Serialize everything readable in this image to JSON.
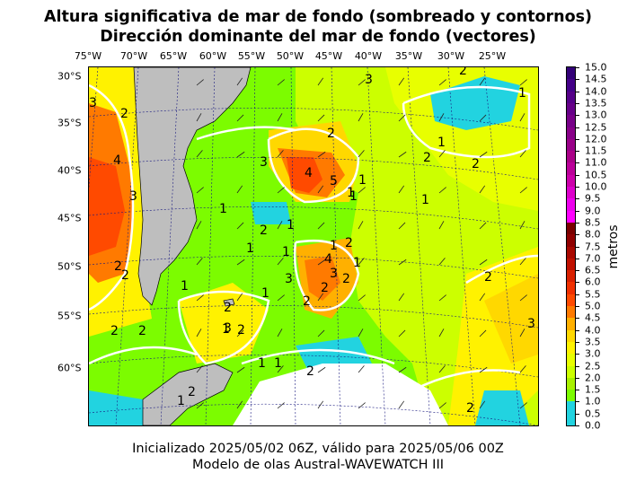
{
  "title_line1": "Altura significativa de mar de fondo (sombreado y contornos)",
  "title_line2": "Dirección dominante del mar de fondo (vectores)",
  "longitude_labels": [
    "75°W",
    "70°W",
    "65°W",
    "60°W",
    "55°W",
    "50°W",
    "45°W",
    "40°W",
    "35°W",
    "30°W",
    "25°W"
  ],
  "latitude_labels": [
    "30°S",
    "35°S",
    "40°S",
    "45°S",
    "50°S",
    "55°S",
    "60°S"
  ],
  "colorbar": {
    "label": "metros",
    "ticks": [
      "15.0",
      "14.5",
      "14.0",
      "13.5",
      "13.0",
      "12.5",
      "12.0",
      "11.5",
      "11.0",
      "10.5",
      "10.0",
      "9.5",
      "9.0",
      "8.5",
      "8.0",
      "7.5",
      "7.0",
      "6.5",
      "6.0",
      "5.5",
      "5.0",
      "4.5",
      "4.0",
      "3.5",
      "3.0",
      "2.5",
      "2.0",
      "1.5",
      "1.0",
      "0.5",
      "0.0"
    ],
    "colors": {
      "0.0": "#22d3e0",
      "0.5": "#22d3e0",
      "1.0": "#7cfc00",
      "1.5": "#a8f000",
      "2.0": "#ccff00",
      "2.5": "#e8ff00",
      "3.0": "#fff200",
      "3.5": "#ffd800",
      "4.0": "#ffb000",
      "4.5": "#ff7a00",
      "5.0": "#ff4a00",
      "5.5": "#f03000",
      "6.0": "#d82000",
      "6.5": "#c01000",
      "7.0": "#a80800",
      "7.5": "#900000",
      "8.0": "#7a0000",
      "8.5": "#ff00ff",
      "9.0": "#ee00ee",
      "9.5": "#dd00cc",
      "10.0": "#cc00aa",
      "10.5": "#bb0099",
      "11.0": "#aa0088",
      "11.5": "#990088",
      "12.0": "#880088",
      "12.5": "#770088",
      "13.0": "#660088",
      "13.5": "#550088",
      "14.0": "#440088",
      "14.5": "#330077"
    }
  },
  "contour_labels": [
    "3",
    "2",
    "4",
    "3",
    "1",
    "2",
    "2",
    "1",
    "2",
    "2",
    "3",
    "4",
    "1",
    "2",
    "5",
    "1",
    "1",
    "2",
    "2",
    "1",
    "1",
    "1",
    "3",
    "1",
    "2",
    "2",
    "1",
    "2",
    "4",
    "3",
    "3",
    "2",
    "1",
    "2",
    "2",
    "3",
    "2",
    "1",
    "1",
    "1",
    "1",
    "1",
    "1",
    "2",
    "2",
    "1",
    "2",
    "2",
    "2",
    "3"
  ],
  "footer_line1": "Inicializado 2025/05/02 06Z, válido para 2025/05/06 00Z",
  "footer_line2": "Modelo de olas Austral-WAVEWATCH III"
}
